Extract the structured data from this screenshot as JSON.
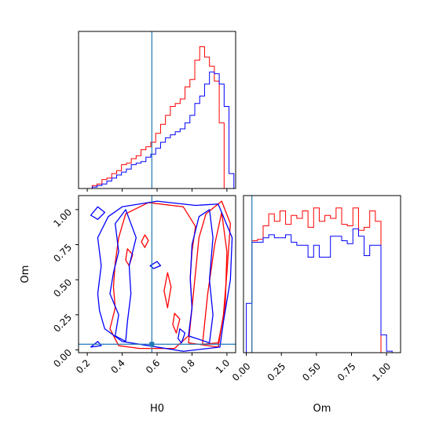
{
  "chart_data": {
    "type": "corner",
    "parameters": [
      "H0",
      "Om"
    ],
    "xlabel_h0": "H0",
    "xlabel_om": "Om",
    "ylabel_om": "Om",
    "truth": {
      "H0": 0.57,
      "Om": 0.04
    },
    "colors": {
      "red": "#ff0000",
      "blue": "#0000ff",
      "truth": "#1f77b4",
      "axes": "#000000"
    },
    "axes": {
      "H0": {
        "range": [
          0.15,
          1.05
        ],
        "ticks": [
          0.2,
          0.4,
          0.6,
          0.8,
          1.0
        ],
        "tick_labels": [
          "0.2",
          "0.4",
          "0.6",
          "0.8",
          "1.0"
        ]
      },
      "Om": {
        "range": [
          -0.02,
          1.1
        ],
        "ticks": [
          0.0,
          0.25,
          0.5,
          0.75,
          1.0
        ],
        "tick_labels": [
          "0.00",
          "0.25",
          "0.50",
          "0.75",
          "1.00"
        ]
      }
    },
    "hist_H0": {
      "edges": [
        0.2,
        0.228,
        0.256,
        0.284,
        0.312,
        0.34,
        0.368,
        0.396,
        0.424,
        0.452,
        0.48,
        0.508,
        0.536,
        0.564,
        0.592,
        0.62,
        0.648,
        0.676,
        0.704,
        0.732,
        0.76,
        0.788,
        0.816,
        0.844,
        0.872,
        0.9,
        0.928,
        0.956,
        0.984,
        1.012,
        1.04
      ],
      "red": [
        0.0,
        0.02,
        0.03,
        0.06,
        0.07,
        0.1,
        0.12,
        0.16,
        0.17,
        0.2,
        0.22,
        0.26,
        0.28,
        0.31,
        0.37,
        0.43,
        0.49,
        0.55,
        0.57,
        0.6,
        0.68,
        0.73,
        0.86,
        0.95,
        0.88,
        0.82,
        0.72,
        0.44,
        0.0,
        0.0
      ],
      "blue": [
        0.0,
        0.01,
        0.02,
        0.03,
        0.05,
        0.07,
        0.09,
        0.11,
        0.13,
        0.16,
        0.17,
        0.18,
        0.21,
        0.23,
        0.27,
        0.31,
        0.34,
        0.36,
        0.38,
        0.4,
        0.44,
        0.49,
        0.57,
        0.62,
        0.7,
        0.78,
        0.77,
        0.7,
        0.55,
        0.1
      ]
    },
    "hist_Om": {
      "edges": [
        0.0,
        0.04,
        0.08,
        0.12,
        0.16,
        0.2,
        0.24,
        0.28,
        0.32,
        0.36,
        0.4,
        0.44,
        0.48,
        0.52,
        0.56,
        0.6,
        0.64,
        0.68,
        0.72,
        0.76,
        0.8,
        0.84,
        0.88,
        0.92,
        0.96,
        1.0,
        1.04,
        1.08
      ],
      "red": [
        0.0,
        0.75,
        0.76,
        0.85,
        0.93,
        0.88,
        0.95,
        0.86,
        0.92,
        0.9,
        0.95,
        0.84,
        0.97,
        0.88,
        0.92,
        0.9,
        0.97,
        0.86,
        0.85,
        0.97,
        0.82,
        0.84,
        0.95,
        0.88,
        0.0,
        0.0,
        0.0
      ],
      "blue": [
        0.33,
        0.74,
        0.74,
        0.77,
        0.79,
        0.77,
        0.77,
        0.79,
        0.74,
        0.72,
        0.72,
        0.64,
        0.72,
        0.64,
        0.64,
        0.78,
        0.78,
        0.75,
        0.73,
        0.83,
        0.78,
        0.65,
        0.72,
        0.72,
        0.12,
        0.01,
        0.0
      ]
    },
    "contours": [
      {
        "color": "red",
        "points": [
          [
            0.33,
            0.15
          ],
          [
            0.36,
            0.3
          ],
          [
            0.35,
            0.45
          ],
          [
            0.36,
            0.62
          ],
          [
            0.38,
            0.8
          ],
          [
            0.42,
            0.97
          ],
          [
            0.55,
            1.05
          ],
          [
            0.75,
            1.02
          ],
          [
            0.82,
            0.88
          ],
          [
            0.8,
            0.7
          ],
          [
            0.79,
            0.52
          ],
          [
            0.8,
            0.3
          ],
          [
            0.78,
            0.1
          ],
          [
            0.7,
            0.01
          ],
          [
            0.5,
            0.01
          ],
          [
            0.38,
            0.03
          ]
        ]
      },
      {
        "color": "red",
        "points": [
          [
            0.78,
            0.05
          ],
          [
            0.8,
            0.3
          ],
          [
            0.82,
            0.55
          ],
          [
            0.84,
            0.8
          ],
          [
            0.88,
            0.97
          ],
          [
            0.97,
            1.06
          ],
          [
            1.02,
            0.9
          ],
          [
            1.0,
            0.55
          ],
          [
            0.98,
            0.25
          ],
          [
            0.95,
            0.02
          ]
        ]
      },
      {
        "color": "red",
        "points": [
          [
            0.86,
            0.04
          ],
          [
            0.89,
            0.4
          ],
          [
            0.93,
            0.75
          ],
          [
            0.97,
            0.98
          ],
          [
            1.0,
            0.7
          ],
          [
            0.99,
            0.3
          ],
          [
            0.95,
            0.05
          ]
        ]
      },
      {
        "color": "red",
        "points": [
          [
            0.44,
            0.6
          ],
          [
            0.46,
            0.68
          ],
          [
            0.43,
            0.72
          ],
          [
            0.42,
            0.64
          ]
        ]
      },
      {
        "color": "red",
        "points": [
          [
            0.53,
            0.73
          ],
          [
            0.55,
            0.78
          ],
          [
            0.53,
            0.82
          ],
          [
            0.51,
            0.77
          ]
        ]
      },
      {
        "color": "red",
        "points": [
          [
            0.66,
            0.3
          ],
          [
            0.68,
            0.45
          ],
          [
            0.66,
            0.55
          ],
          [
            0.64,
            0.42
          ]
        ]
      },
      {
        "color": "red",
        "points": [
          [
            0.71,
            0.12
          ],
          [
            0.73,
            0.22
          ],
          [
            0.7,
            0.26
          ],
          [
            0.69,
            0.18
          ]
        ]
      },
      {
        "color": "blue",
        "points": [
          [
            0.26,
            0.4
          ],
          [
            0.28,
            0.6
          ],
          [
            0.26,
            0.8
          ],
          [
            0.32,
            0.95
          ],
          [
            0.4,
            1.02
          ],
          [
            0.6,
            1.06
          ],
          [
            0.82,
            1.03
          ],
          [
            0.95,
            1.04
          ],
          [
            1.03,
            0.8
          ],
          [
            1.02,
            0.5
          ],
          [
            0.98,
            0.2
          ],
          [
            0.96,
            0.02
          ],
          [
            0.75,
            -0.01
          ],
          [
            0.55,
            0.03
          ],
          [
            0.4,
            0.06
          ],
          [
            0.3,
            0.15
          ],
          [
            0.27,
            0.28
          ]
        ]
      },
      {
        "color": "blue",
        "points": [
          [
            0.36,
            0.1
          ],
          [
            0.38,
            0.25
          ],
          [
            0.33,
            0.4
          ],
          [
            0.35,
            0.55
          ],
          [
            0.38,
            0.7
          ],
          [
            0.36,
            0.9
          ],
          [
            0.42,
            1.0
          ],
          [
            0.48,
            0.8
          ],
          [
            0.44,
            0.6
          ],
          [
            0.45,
            0.4
          ],
          [
            0.43,
            0.2
          ],
          [
            0.42,
            0.06
          ]
        ]
      },
      {
        "color": "blue",
        "points": [
          [
            0.78,
            0.1
          ],
          [
            0.8,
            0.3
          ],
          [
            0.79,
            0.5
          ],
          [
            0.8,
            0.75
          ],
          [
            0.84,
            0.95
          ],
          [
            0.9,
            1.0
          ],
          [
            0.92,
            0.8
          ],
          [
            0.9,
            0.5
          ],
          [
            0.92,
            0.25
          ],
          [
            0.9,
            0.05
          ]
        ]
      },
      {
        "color": "blue",
        "points": [
          [
            0.22,
            0.96
          ],
          [
            0.26,
            1.02
          ],
          [
            0.3,
            0.98
          ],
          [
            0.26,
            0.93
          ]
        ]
      },
      {
        "color": "blue",
        "points": [
          [
            0.56,
            0.6
          ],
          [
            0.6,
            0.63
          ],
          [
            0.62,
            0.6
          ],
          [
            0.58,
            0.58
          ]
        ]
      },
      {
        "color": "blue",
        "points": [
          [
            0.74,
            0.05
          ],
          [
            0.76,
            0.12
          ],
          [
            0.73,
            0.15
          ],
          [
            0.72,
            0.08
          ]
        ]
      },
      {
        "color": "blue",
        "points": [
          [
            0.22,
            0.02
          ],
          [
            0.26,
            0.06
          ],
          [
            0.28,
            0.03
          ]
        ]
      }
    ]
  }
}
